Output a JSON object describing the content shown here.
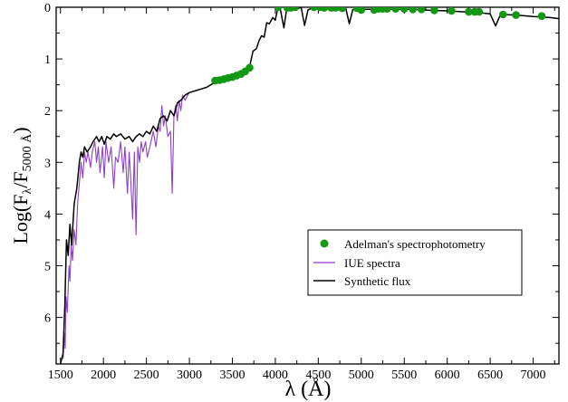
{
  "chart_data": {
    "type": "line",
    "xlabel": "λ (Å)",
    "ylabel_main": "Log(F",
    "ylabel_sub1": "λ",
    "ylabel_mid": "/F",
    "ylabel_sub2": "5000 Å",
    "ylabel_end": ")",
    "xlim": [
      1450,
      7300
    ],
    "ylim": [
      0,
      6.9
    ],
    "y_inverted": true,
    "x_ticks": [
      1500,
      2000,
      2500,
      3000,
      3500,
      4000,
      4500,
      5000,
      5500,
      6000,
      6500,
      7000
    ],
    "y_ticks": [
      0,
      1,
      2,
      3,
      4,
      5,
      6
    ],
    "grid": false,
    "legend_position": "lower-right",
    "series": [
      {
        "name": "Adelman's spectrophotometry",
        "kind": "points",
        "color": "#129812",
        "points": [
          [
            3300,
            1.42
          ],
          [
            3350,
            1.41
          ],
          [
            3400,
            1.39
          ],
          [
            3450,
            1.37
          ],
          [
            3500,
            1.35
          ],
          [
            3550,
            1.32
          ],
          [
            3600,
            1.29
          ],
          [
            3650,
            1.24
          ],
          [
            3700,
            1.17
          ],
          [
            4030,
            0.0
          ],
          [
            4140,
            0.01
          ],
          [
            4180,
            0.01
          ],
          [
            4230,
            0.0
          ],
          [
            4450,
            0.0
          ],
          [
            4520,
            0.0
          ],
          [
            4570,
            0.01
          ],
          [
            4650,
            0.01
          ],
          [
            4700,
            0.01
          ],
          [
            4780,
            0.02
          ],
          [
            4950,
            0.02
          ],
          [
            5000,
            0.05
          ],
          [
            5150,
            0.05
          ],
          [
            5200,
            0.03
          ],
          [
            5250,
            0.03
          ],
          [
            5300,
            0.03
          ],
          [
            5400,
            0.03
          ],
          [
            5500,
            0.03
          ],
          [
            5600,
            0.04
          ],
          [
            5700,
            0.04
          ],
          [
            5850,
            0.06
          ],
          [
            6050,
            0.07
          ],
          [
            6250,
            0.09
          ],
          [
            6320,
            0.09
          ],
          [
            6370,
            0.09
          ],
          [
            6650,
            0.14
          ],
          [
            6800,
            0.15
          ],
          [
            7100,
            0.17
          ]
        ]
      },
      {
        "name": "IUE spectra",
        "kind": "line",
        "color": "#8e3fc7",
        "points": [
          [
            1530,
            6.8
          ],
          [
            1545,
            6.3
          ],
          [
            1555,
            6.6
          ],
          [
            1565,
            5.6
          ],
          [
            1580,
            5.9
          ],
          [
            1600,
            5.0
          ],
          [
            1610,
            5.3
          ],
          [
            1625,
            4.6
          ],
          [
            1640,
            4.9
          ],
          [
            1660,
            4.3
          ],
          [
            1680,
            4.6
          ],
          [
            1700,
            3.8
          ],
          [
            1720,
            3.4
          ],
          [
            1740,
            3.0
          ],
          [
            1760,
            3.3
          ],
          [
            1780,
            2.8
          ],
          [
            1800,
            3.0
          ],
          [
            1820,
            2.8
          ],
          [
            1850,
            3.1
          ],
          [
            1870,
            2.8
          ],
          [
            1900,
            2.6
          ],
          [
            1920,
            3.0
          ],
          [
            1940,
            2.7
          ],
          [
            1960,
            3.2
          ],
          [
            1990,
            2.7
          ],
          [
            2010,
            3.3
          ],
          [
            2030,
            2.6
          ],
          [
            2060,
            3.0
          ],
          [
            2090,
            2.7
          ],
          [
            2120,
            3.5
          ],
          [
            2140,
            2.9
          ],
          [
            2170,
            3.0
          ],
          [
            2200,
            2.6
          ],
          [
            2230,
            3.2
          ],
          [
            2250,
            2.7
          ],
          [
            2280,
            3.6
          ],
          [
            2300,
            2.8
          ],
          [
            2320,
            3.4
          ],
          [
            2340,
            4.1
          ],
          [
            2360,
            2.8
          ],
          [
            2380,
            4.4
          ],
          [
            2400,
            2.7
          ],
          [
            2420,
            3.0
          ],
          [
            2440,
            2.6
          ],
          [
            2460,
            2.8
          ],
          [
            2490,
            2.6
          ],
          [
            2510,
            2.9
          ],
          [
            2540,
            2.7
          ],
          [
            2580,
            2.4
          ],
          [
            2610,
            2.7
          ],
          [
            2640,
            2.3
          ],
          [
            2660,
            2.4
          ],
          [
            2680,
            1.9
          ],
          [
            2700,
            2.3
          ],
          [
            2720,
            2.1
          ],
          [
            2750,
            2.5
          ],
          [
            2780,
            2.4
          ],
          [
            2800,
            3.6
          ],
          [
            2820,
            2.1
          ],
          [
            2840,
            1.9
          ],
          [
            2860,
            2.2
          ],
          [
            2880,
            1.8
          ],
          [
            2900,
            2.0
          ],
          [
            2920,
            1.7
          ],
          [
            2950,
            1.8
          ],
          [
            2980,
            1.7
          ],
          [
            3000,
            1.65
          ]
        ]
      },
      {
        "name": "Synthetic flux",
        "kind": "line",
        "color": "#000000",
        "points": [
          [
            1500,
            6.9
          ],
          [
            1530,
            6.7
          ],
          [
            1550,
            5.8
          ],
          [
            1570,
            4.5
          ],
          [
            1590,
            4.8
          ],
          [
            1610,
            4.2
          ],
          [
            1630,
            4.6
          ],
          [
            1660,
            3.8
          ],
          [
            1690,
            3.5
          ],
          [
            1720,
            3.0
          ],
          [
            1740,
            2.8
          ],
          [
            1760,
            2.9
          ],
          [
            1780,
            2.7
          ],
          [
            1810,
            2.8
          ],
          [
            1850,
            2.7
          ],
          [
            1880,
            2.6
          ],
          [
            1920,
            2.5
          ],
          [
            1950,
            2.6
          ],
          [
            1980,
            2.5
          ],
          [
            2010,
            2.65
          ],
          [
            2040,
            2.5
          ],
          [
            2080,
            2.55
          ],
          [
            2120,
            2.45
          ],
          [
            2150,
            2.5
          ],
          [
            2200,
            2.45
          ],
          [
            2250,
            2.55
          ],
          [
            2300,
            2.5
          ],
          [
            2340,
            2.6
          ],
          [
            2380,
            2.5
          ],
          [
            2420,
            2.45
          ],
          [
            2460,
            2.5
          ],
          [
            2500,
            2.4
          ],
          [
            2540,
            2.45
          ],
          [
            2580,
            2.3
          ],
          [
            2620,
            2.4
          ],
          [
            2660,
            2.15
          ],
          [
            2700,
            2.1
          ],
          [
            2740,
            2.2
          ],
          [
            2780,
            2.0
          ],
          [
            2820,
            2.1
          ],
          [
            2860,
            1.85
          ],
          [
            2900,
            1.8
          ],
          [
            2950,
            1.7
          ],
          [
            3000,
            1.65
          ],
          [
            3100,
            1.6
          ],
          [
            3200,
            1.55
          ],
          [
            3300,
            1.45
          ],
          [
            3400,
            1.4
          ],
          [
            3500,
            1.35
          ],
          [
            3600,
            1.28
          ],
          [
            3650,
            1.22
          ],
          [
            3700,
            1.15
          ],
          [
            3740,
            0.85
          ],
          [
            3780,
            0.8
          ],
          [
            3810,
            0.65
          ],
          [
            3840,
            0.55
          ],
          [
            3870,
            0.58
          ],
          [
            3900,
            0.3
          ],
          [
            3930,
            0.32
          ],
          [
            3970,
            0.2
          ],
          [
            4000,
            0.25
          ],
          [
            4030,
            0.0
          ],
          [
            4060,
            0.05
          ],
          [
            4100,
            0.4
          ],
          [
            4130,
            0.05
          ],
          [
            4180,
            0.0
          ],
          [
            4230,
            0.05
          ],
          [
            4300,
            0.0
          ],
          [
            4340,
            0.35
          ],
          [
            4380,
            0.05
          ],
          [
            4450,
            0.0
          ],
          [
            4550,
            0.02
          ],
          [
            4650,
            0.03
          ],
          [
            4750,
            0.05
          ],
          [
            4820,
            0.02
          ],
          [
            4861,
            0.32
          ],
          [
            4900,
            0.05
          ],
          [
            4950,
            0.02
          ],
          [
            5050,
            0.04
          ],
          [
            5200,
            0.04
          ],
          [
            5400,
            0.04
          ],
          [
            5600,
            0.04
          ],
          [
            5800,
            0.06
          ],
          [
            6000,
            0.07
          ],
          [
            6200,
            0.09
          ],
          [
            6400,
            0.11
          ],
          [
            6500,
            0.13
          ],
          [
            6563,
            0.36
          ],
          [
            6620,
            0.14
          ],
          [
            6800,
            0.15
          ],
          [
            7000,
            0.18
          ],
          [
            7200,
            0.2
          ],
          [
            7300,
            0.22
          ]
        ]
      }
    ]
  }
}
